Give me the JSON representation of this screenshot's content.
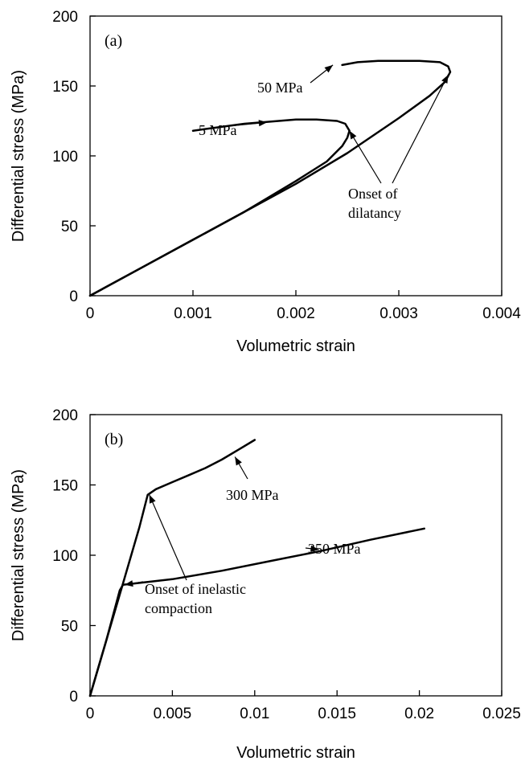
{
  "chart_data": [
    {
      "type": "line",
      "panel_label": "(a)",
      "xlabel": "Volumetric strain",
      "ylabel": "Differential stress (MPa)",
      "xlim": [
        0,
        0.004
      ],
      "ylim": [
        0,
        200
      ],
      "xticks": [
        "0",
        "0.001",
        "0.002",
        "0.003",
        "0.004"
      ],
      "yticks": [
        "0",
        "50",
        "100",
        "150",
        "200"
      ],
      "grid": false,
      "series": [
        {
          "name": "5 MPa",
          "x": [
            0,
            0.0005,
            0.001,
            0.0015,
            0.002,
            0.0023,
            0.00245,
            0.0025,
            0.00252,
            0.00248,
            0.0024,
            0.0022,
            0.002,
            0.0015,
            0.001
          ],
          "y": [
            0,
            20,
            40,
            60,
            82,
            96,
            107,
            113,
            118,
            123,
            125,
            126,
            126,
            123,
            118
          ]
        },
        {
          "name": "50 MPa",
          "x": [
            0,
            0.0005,
            0.001,
            0.0015,
            0.002,
            0.0025,
            0.003,
            0.0033,
            0.00345,
            0.0035,
            0.00348,
            0.0034,
            0.0032,
            0.003,
            0.0028,
            0.0026,
            0.00245
          ],
          "y": [
            0,
            20,
            40,
            60,
            80,
            102,
            127,
            143,
            153,
            160,
            164,
            167,
            168,
            168,
            168,
            167,
            165
          ]
        }
      ],
      "annotations": [
        {
          "text": "50 MPa",
          "x": 0.00165,
          "y": 150,
          "target_x": 0.00236,
          "target_y": 165
        },
        {
          "text": "5 MPa",
          "x": 0.00115,
          "y": 101,
          "target_x": 0.00172,
          "target_y": 124
        },
        {
          "text": "Onset of\ndilatancy",
          "x": 0.00266,
          "y": 79,
          "target_x": [
            0.00252,
            0.00348
          ],
          "target_y": [
            118,
            158
          ]
        }
      ]
    },
    {
      "type": "line",
      "panel_label": "(b)",
      "xlabel": "Volumetric strain",
      "ylabel": "Differential stress (MPa)",
      "xlim": [
        0,
        0.025
      ],
      "ylim": [
        0,
        200
      ],
      "xticks": [
        "0",
        "0.005",
        "0.01",
        "0.015",
        "0.02",
        "0.025"
      ],
      "yticks": [
        "0",
        "50",
        "100",
        "150",
        "200"
      ],
      "grid": false,
      "series": [
        {
          "name": "300 MPa",
          "x": [
            0,
            0.001,
            0.002,
            0.003,
            0.0035,
            0.004,
            0.005,
            0.006,
            0.007,
            0.008,
            0.009,
            0.01
          ],
          "y": [
            0,
            40,
            80,
            120,
            143,
            147,
            152,
            157,
            162,
            168,
            175,
            182
          ]
        },
        {
          "name": "350 MPa",
          "x": [
            0,
            0.001,
            0.0018,
            0.002,
            0.005,
            0.008,
            0.011,
            0.014,
            0.017,
            0.0203
          ],
          "y": [
            0,
            40,
            75,
            79,
            83,
            89,
            96,
            103,
            111,
            119
          ]
        }
      ],
      "annotations": [
        {
          "text": "300 MPa",
          "x": 0.0094,
          "y": 148,
          "target_x": 0.0088,
          "target_y": 170
        },
        {
          "text": "350 MPa",
          "x": 0.0149,
          "y": 92,
          "target_x": 0.0139,
          "target_y": 104
        },
        {
          "text": "Onset of inelastic\ncompaction",
          "x": 0.0038,
          "y": 57,
          "target_x": [
            0.0021,
            0.0036
          ],
          "target_y": [
            79,
            143
          ]
        }
      ]
    }
  ]
}
